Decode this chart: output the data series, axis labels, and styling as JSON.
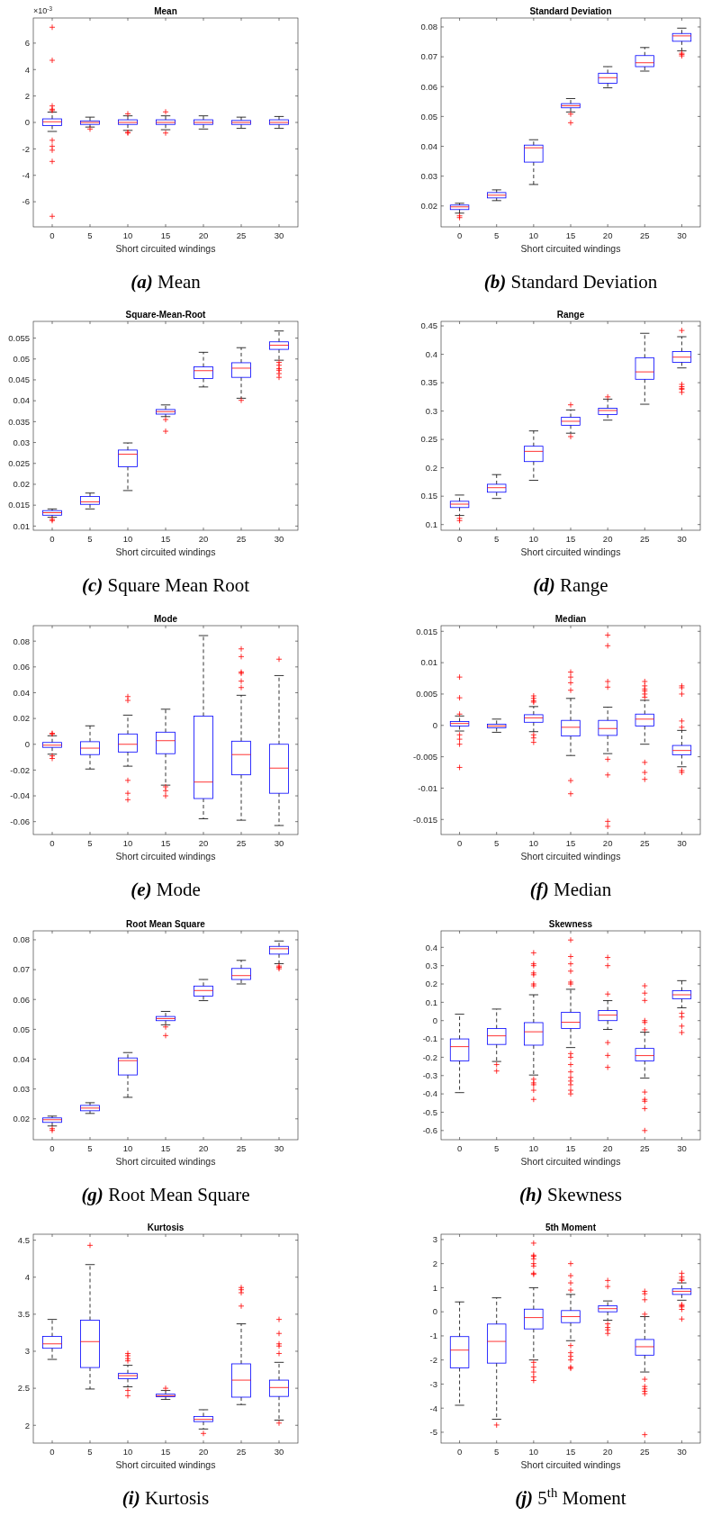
{
  "chart_data": [
    {
      "type": "box",
      "title": "Mean",
      "xlabel": "Short circuited windings",
      "categories": [
        "0",
        "5",
        "10",
        "15",
        "20",
        "25",
        "30"
      ],
      "color": "#0000ff",
      "ylim": [
        -7.9,
        7.9
      ],
      "yticks": [
        -6,
        -4,
        -2,
        0,
        2,
        4,
        6
      ],
      "annotations": [
        "(a) Mean",
        "×10$^{-3}$"
      ],
      "boxes": [
        {
          "low": -0.68,
          "q1": -0.24,
          "median": 0.05,
          "q3": 0.27,
          "high": 0.78,
          "outliers": [
            7.2,
            4.7,
            1.25,
            1.0,
            0.9,
            -1.35,
            -1.8,
            -2.1,
            -2.95,
            -7.1
          ]
        },
        {
          "low": -0.35,
          "q1": -0.15,
          "median": 0,
          "q3": 0.12,
          "high": 0.4,
          "outliers": [
            -0.5
          ]
        },
        {
          "low": -0.6,
          "q1": -0.15,
          "median": 0,
          "q3": 0.2,
          "high": 0.5,
          "outliers": [
            0.65,
            -0.75,
            -0.8
          ]
        },
        {
          "low": -0.55,
          "q1": -0.15,
          "median": 0,
          "q3": 0.2,
          "high": 0.5,
          "outliers": [
            0.8,
            -0.8
          ]
        },
        {
          "low": -0.5,
          "q1": -0.15,
          "median": 0,
          "q3": 0.2,
          "high": 0.5
        },
        {
          "low": -0.45,
          "q1": -0.15,
          "median": 0,
          "q3": 0.15,
          "high": 0.4
        },
        {
          "low": -0.45,
          "q1": -0.15,
          "median": 0,
          "q3": 0.2,
          "high": 0.45
        }
      ]
    },
    {
      "type": "box",
      "title": "Standard Deviation",
      "xlabel": "Short circuited windings",
      "categories": [
        "0",
        "5",
        "10",
        "15",
        "20",
        "25",
        "30"
      ],
      "color": "#0000ff",
      "ylim": [
        0.013,
        0.083
      ],
      "yticks": [
        0.02,
        0.03,
        0.04,
        0.05,
        0.06,
        0.07,
        0.08
      ],
      "annotations": [
        "(b) Standard Deviation"
      ],
      "boxes": [
        {
          "low": 0.0176,
          "q1": 0.0188,
          "median": 0.0197,
          "q3": 0.0203,
          "high": 0.0209,
          "outliers": [
            0.0167,
            0.0161
          ]
        },
        {
          "low": 0.0218,
          "q1": 0.0227,
          "median": 0.0236,
          "q3": 0.0245,
          "high": 0.0254
        },
        {
          "low": 0.0272,
          "q1": 0.0347,
          "median": 0.0395,
          "q3": 0.0404,
          "high": 0.0422
        },
        {
          "low": 0.0515,
          "q1": 0.0529,
          "median": 0.0536,
          "q3": 0.0543,
          "high": 0.056,
          "outliers": [
            0.0508,
            0.0479
          ]
        },
        {
          "low": 0.0596,
          "q1": 0.0611,
          "median": 0.063,
          "q3": 0.0645,
          "high": 0.0667
        },
        {
          "low": 0.0652,
          "q1": 0.0667,
          "median": 0.068,
          "q3": 0.0704,
          "high": 0.0731
        },
        {
          "low": 0.072,
          "q1": 0.0752,
          "median": 0.077,
          "q3": 0.0778,
          "high": 0.0796,
          "outliers": [
            0.0712,
            0.0708,
            0.0703
          ]
        }
      ]
    },
    {
      "type": "box",
      "title": "Square-Mean-Root",
      "xlabel": "Short circuited windings",
      "categories": [
        "0",
        "5",
        "10",
        "15",
        "20",
        "25",
        "30"
      ],
      "color": "#0000ff",
      "ylim": [
        0.009,
        0.059
      ],
      "yticks": [
        0.01,
        0.015,
        0.02,
        0.025,
        0.03,
        0.035,
        0.04,
        0.045,
        0.05,
        0.055
      ],
      "annotations": [
        "(c) Square Mean Root"
      ],
      "boxes": [
        {
          "low": 0.0121,
          "q1": 0.0126,
          "median": 0.0132,
          "q3": 0.0137,
          "high": 0.0141,
          "outliers": [
            0.0116,
            0.0113
          ]
        },
        {
          "low": 0.0141,
          "q1": 0.0152,
          "median": 0.0158,
          "q3": 0.0171,
          "high": 0.0179
        },
        {
          "low": 0.0185,
          "q1": 0.0242,
          "median": 0.0272,
          "q3": 0.0282,
          "high": 0.0299
        },
        {
          "low": 0.0362,
          "q1": 0.0368,
          "median": 0.0374,
          "q3": 0.0379,
          "high": 0.039,
          "outliers": [
            0.0355,
            0.0327
          ]
        },
        {
          "low": 0.0433,
          "q1": 0.0453,
          "median": 0.0472,
          "q3": 0.0481,
          "high": 0.0516
        },
        {
          "low": 0.0406,
          "q1": 0.0456,
          "median": 0.0478,
          "q3": 0.0491,
          "high": 0.0527,
          "outliers": [
            0.0401
          ]
        },
        {
          "low": 0.0497,
          "q1": 0.0523,
          "median": 0.0533,
          "q3": 0.0541,
          "high": 0.0567,
          "outliers": [
            0.0492,
            0.0485,
            0.0477,
            0.0473,
            0.0465,
            0.0456
          ]
        }
      ]
    },
    {
      "type": "box",
      "title": "Range",
      "xlabel": "Short circuited windings",
      "categories": [
        "0",
        "5",
        "10",
        "15",
        "20",
        "25",
        "30"
      ],
      "color": "#0000ff",
      "ylim": [
        0.09,
        0.458
      ],
      "yticks": [
        0.1,
        0.15,
        0.2,
        0.25,
        0.3,
        0.35,
        0.4,
        0.45
      ],
      "annotations": [
        "(d) Range"
      ],
      "boxes": [
        {
          "low": 0.116,
          "q1": 0.13,
          "median": 0.136,
          "q3": 0.141,
          "high": 0.152,
          "outliers": [
            0.111,
            0.107
          ]
        },
        {
          "low": 0.146,
          "q1": 0.157,
          "median": 0.165,
          "q3": 0.171,
          "high": 0.188
        },
        {
          "low": 0.178,
          "q1": 0.211,
          "median": 0.229,
          "q3": 0.238,
          "high": 0.265
        },
        {
          "low": 0.261,
          "q1": 0.275,
          "median": 0.282,
          "q3": 0.289,
          "high": 0.302,
          "outliers": [
            0.311,
            0.255
          ]
        },
        {
          "low": 0.284,
          "q1": 0.294,
          "median": 0.301,
          "q3": 0.305,
          "high": 0.321,
          "outliers": [
            0.325
          ]
        },
        {
          "low": 0.312,
          "q1": 0.356,
          "median": 0.369,
          "q3": 0.394,
          "high": 0.437
        },
        {
          "low": 0.376,
          "q1": 0.386,
          "median": 0.395,
          "q3": 0.405,
          "high": 0.431,
          "outliers": [
            0.442,
            0.347,
            0.343,
            0.34,
            0.338,
            0.333
          ]
        }
      ]
    },
    {
      "type": "box",
      "title": "Mode",
      "xlabel": "Short circuited windings",
      "categories": [
        "0",
        "5",
        "10",
        "15",
        "20",
        "25",
        "30"
      ],
      "color": "#0000ff",
      "ylim": [
        -0.07,
        0.092
      ],
      "yticks": [
        -0.06,
        -0.04,
        -0.02,
        0,
        0.02,
        0.04,
        0.06,
        0.08
      ],
      "annotations": [
        "(e) Mode"
      ],
      "boxes": [
        {
          "low": -0.0077,
          "q1": -0.0024,
          "median": -0.0007,
          "q3": 0.0014,
          "high": 0.0066,
          "outliers": [
            0.008,
            0.0085,
            -0.009,
            -0.011
          ]
        },
        {
          "low": -0.0192,
          "q1": -0.008,
          "median": -0.003,
          "q3": 0.002,
          "high": 0.0143
        },
        {
          "low": -0.017,
          "q1": -0.006,
          "median": 0,
          "q3": 0.008,
          "high": 0.0226,
          "outliers": [
            0.037,
            0.034,
            -0.028,
            -0.038,
            -0.043
          ]
        },
        {
          "low": -0.0317,
          "q1": -0.0073,
          "median": 0.0028,
          "q3": 0.0094,
          "high": 0.0272,
          "outliers": [
            -0.033,
            -0.036,
            -0.04
          ]
        },
        {
          "low": -0.0578,
          "q1": -0.0421,
          "median": -0.0293,
          "q3": 0.0219,
          "high": 0.0843
        },
        {
          "low": -0.0589,
          "q1": -0.0237,
          "median": -0.008,
          "q3": 0.0024,
          "high": 0.038,
          "outliers": [
            0.074,
            0.068,
            0.056,
            0.055,
            0.049,
            0.044
          ]
        },
        {
          "low": -0.063,
          "q1": -0.038,
          "median": -0.0185,
          "q3": 0,
          "high": 0.0533,
          "outliers": [
            0.066
          ]
        }
      ]
    },
    {
      "type": "box",
      "title": "Median",
      "xlabel": "Short circuited windings",
      "categories": [
        "0",
        "5",
        "10",
        "15",
        "20",
        "25",
        "30"
      ],
      "color": "#0000ff",
      "ylim": [
        -0.0174,
        0.0159
      ],
      "yticks": [
        -0.015,
        -0.01,
        -0.005,
        0,
        0.005,
        0.01,
        0.015
      ],
      "annotations": [
        "(f) Median"
      ],
      "boxes": [
        {
          "low": -0.0009,
          "q1": -0.0001,
          "median": 0.0003,
          "q3": 0.0006,
          "high": 0.0015,
          "outliers": [
            0.0077,
            0.0044,
            0.0018,
            -0.0015,
            -0.0022,
            -0.003,
            -0.0067
          ]
        },
        {
          "low": -0.0011,
          "q1": -0.0004,
          "median": -0.0001,
          "q3": 0.0002,
          "high": 0.001
        },
        {
          "low": -0.001,
          "q1": 0.0005,
          "median": 0.0012,
          "q3": 0.0017,
          "high": 0.003,
          "outliers": [
            0.0047,
            0.0043,
            0.0039,
            0.0037,
            -0.0015,
            -0.002,
            -0.0027
          ]
        },
        {
          "low": -0.0048,
          "q1": -0.0017,
          "median": -0.0003,
          "q3": 0.0008,
          "high": 0.0043,
          "outliers": [
            0.0085,
            0.0077,
            0.0068,
            0.0056,
            -0.0088,
            -0.0109
          ]
        },
        {
          "low": -0.0045,
          "q1": -0.0016,
          "median": -0.0005,
          "q3": 0.0008,
          "high": 0.0029,
          "outliers": [
            0.0144,
            0.0127,
            0.007,
            0.0061,
            -0.0054,
            -0.0079,
            -0.0153,
            -0.0161
          ]
        },
        {
          "low": -0.003,
          "q1": -0.0001,
          "median": 0.001,
          "q3": 0.0018,
          "high": 0.004,
          "outliers": [
            0.007,
            0.0063,
            0.0058,
            0.0055,
            0.005,
            0.0045,
            -0.0059,
            -0.0075,
            -0.0086
          ]
        },
        {
          "low": -0.0066,
          "q1": -0.0047,
          "median": -0.004,
          "q3": -0.0032,
          "high": -0.0008,
          "outliers": [
            0.0063,
            0.006,
            0.005,
            0.0007,
            -0.0003,
            -0.0072,
            -0.0075
          ]
        }
      ]
    },
    {
      "type": "box",
      "title": "Root Mean Square",
      "xlabel": "Short circuited windings",
      "categories": [
        "0",
        "5",
        "10",
        "15",
        "20",
        "25",
        "30"
      ],
      "color": "#0000ff",
      "ylim": [
        0.013,
        0.083
      ],
      "yticks": [
        0.02,
        0.03,
        0.04,
        0.05,
        0.06,
        0.07,
        0.08
      ],
      "annotations": [
        "(g) Root Mean Square"
      ],
      "boxes": [
        {
          "low": 0.0176,
          "q1": 0.0188,
          "median": 0.0197,
          "q3": 0.0203,
          "high": 0.0209,
          "outliers": [
            0.0167,
            0.0161
          ]
        },
        {
          "low": 0.0218,
          "q1": 0.0227,
          "median": 0.0236,
          "q3": 0.0245,
          "high": 0.0254
        },
        {
          "low": 0.0272,
          "q1": 0.0347,
          "median": 0.0395,
          "q3": 0.0404,
          "high": 0.0422
        },
        {
          "low": 0.0515,
          "q1": 0.0529,
          "median": 0.0536,
          "q3": 0.0543,
          "high": 0.056,
          "outliers": [
            0.0508,
            0.0479
          ]
        },
        {
          "low": 0.0596,
          "q1": 0.0611,
          "median": 0.063,
          "q3": 0.0645,
          "high": 0.0667
        },
        {
          "low": 0.0652,
          "q1": 0.0667,
          "median": 0.068,
          "q3": 0.0704,
          "high": 0.0731
        },
        {
          "low": 0.072,
          "q1": 0.0752,
          "median": 0.077,
          "q3": 0.0778,
          "high": 0.0796,
          "outliers": [
            0.0712,
            0.0708,
            0.0703
          ]
        }
      ]
    },
    {
      "type": "box",
      "title": "Skewness",
      "xlabel": "Short circuited windings",
      "categories": [
        "0",
        "5",
        "10",
        "15",
        "20",
        "25",
        "30"
      ],
      "color": "#0000ff",
      "ylim": [
        -0.65,
        0.49
      ],
      "yticks": [
        -0.6,
        -0.5,
        -0.4,
        -0.3,
        -0.2,
        -0.1,
        0,
        0.1,
        0.2,
        0.3,
        0.4
      ],
      "annotations": [
        "(h) Skewness"
      ],
      "boxes": [
        {
          "low": -0.393,
          "q1": -0.22,
          "median": -0.142,
          "q3": -0.1,
          "high": 0.035
        },
        {
          "low": -0.223,
          "q1": -0.13,
          "median": -0.083,
          "q3": -0.043,
          "high": 0.063,
          "outliers": [
            -0.24,
            -0.275
          ]
        },
        {
          "low": -0.297,
          "q1": -0.134,
          "median": -0.061,
          "q3": -0.011,
          "high": 0.141,
          "outliers": [
            0.37,
            0.31,
            0.3,
            0.26,
            0.25,
            0.2,
            0.19,
            -0.32,
            -0.34,
            -0.35,
            -0.38,
            -0.43
          ]
        },
        {
          "low": -0.147,
          "q1": -0.043,
          "median": -0.009,
          "q3": 0.045,
          "high": 0.171,
          "outliers": [
            0.44,
            0.35,
            0.31,
            0.27,
            0.21,
            0.2,
            -0.18,
            -0.2,
            -0.24,
            -0.28,
            -0.31,
            -0.33,
            -0.35,
            -0.38,
            -0.4
          ]
        },
        {
          "low": -0.048,
          "q1": 0,
          "median": 0.03,
          "q3": 0.055,
          "high": 0.109,
          "outliers": [
            0.345,
            0.3,
            0.145,
            -0.12,
            -0.19,
            -0.255
          ]
        },
        {
          "low": -0.314,
          "q1": -0.22,
          "median": -0.191,
          "q3": -0.152,
          "high": -0.063,
          "outliers": [
            0.19,
            0.15,
            0.11,
            0,
            -0.01,
            -0.05,
            -0.39,
            -0.43,
            -0.44,
            -0.48,
            -0.6
          ]
        },
        {
          "low": 0.07,
          "q1": 0.119,
          "median": 0.141,
          "q3": 0.163,
          "high": 0.218,
          "outliers": [
            0.04,
            0.02,
            -0.03,
            -0.065
          ]
        }
      ]
    },
    {
      "type": "box",
      "title": "Kurtosis",
      "xlabel": "Short circuited windings",
      "categories": [
        "0",
        "5",
        "10",
        "15",
        "20",
        "25",
        "30"
      ],
      "color": "#0000ff",
      "ylim": [
        1.76,
        4.58
      ],
      "yticks": [
        2,
        2.5,
        3,
        3.5,
        4,
        4.5
      ],
      "annotations": [
        "(i) Kurtosis"
      ],
      "boxes": [
        {
          "low": 2.89,
          "q1": 3.04,
          "median": 3.1,
          "q3": 3.2,
          "high": 3.43
        },
        {
          "low": 2.49,
          "q1": 2.78,
          "median": 3.13,
          "q3": 3.42,
          "high": 4.17,
          "outliers": [
            4.43
          ]
        },
        {
          "low": 2.52,
          "q1": 2.63,
          "median": 2.67,
          "q3": 2.7,
          "high": 2.81,
          "outliers": [
            2.97,
            2.94,
            2.9,
            2.87,
            2.47,
            2.4
          ]
        },
        {
          "low": 2.35,
          "q1": 2.385,
          "median": 2.4,
          "q3": 2.42,
          "high": 2.47,
          "outliers": [
            2.5
          ]
        },
        {
          "low": 1.95,
          "q1": 2.05,
          "median": 2.08,
          "q3": 2.12,
          "high": 2.21,
          "outliers": [
            1.89
          ]
        },
        {
          "low": 2.28,
          "q1": 2.38,
          "median": 2.61,
          "q3": 2.83,
          "high": 3.37,
          "outliers": [
            3.86,
            3.83,
            3.79,
            3.61
          ]
        },
        {
          "low": 2.07,
          "q1": 2.39,
          "median": 2.51,
          "q3": 2.61,
          "high": 2.85,
          "outliers": [
            3.43,
            3.24,
            3.1,
            3.07,
            2.97,
            2.03
          ]
        }
      ]
    },
    {
      "type": "box",
      "title": "5th Moment",
      "xlabel": "Short circuited windings",
      "categories": [
        "0",
        "5",
        "10",
        "15",
        "20",
        "25",
        "30"
      ],
      "color": "#0000ff",
      "ylim": [
        -5.45,
        3.22
      ],
      "yticks": [
        -5,
        -4,
        -3,
        -2,
        -1,
        0,
        1,
        2,
        3
      ],
      "annotations": [
        "(j) 5$^{th}$ Moment"
      ],
      "boxes": [
        {
          "low": -3.88,
          "q1": -2.33,
          "median": -1.59,
          "q3": -1.03,
          "high": 0.41
        },
        {
          "low": -4.46,
          "q1": -2.13,
          "median": -1.23,
          "q3": -0.51,
          "high": 0.58,
          "outliers": [
            -4.7
          ]
        },
        {
          "low": -2.0,
          "q1": -0.71,
          "median": -0.24,
          "q3": 0.11,
          "high": 1.0,
          "outliers": [
            2.85,
            2.35,
            2.3,
            2.2,
            2.0,
            1.9,
            1.6,
            1.55,
            -2.1,
            -2.3,
            -2.5,
            -2.7,
            -2.85
          ]
        },
        {
          "low": -1.2,
          "q1": -0.45,
          "median": -0.2,
          "q3": 0.05,
          "high": 0.72,
          "outliers": [
            2.0,
            1.5,
            1.2,
            0.9,
            -1.4,
            -1.7,
            -1.85,
            -2.0,
            -2.3,
            -2.35
          ]
        },
        {
          "low": -0.35,
          "q1": 0,
          "median": 0.13,
          "q3": 0.25,
          "high": 0.45,
          "outliers": [
            1.3,
            1.05,
            -0.5,
            -0.65,
            -0.75,
            -0.9
          ]
        },
        {
          "low": -2.5,
          "q1": -1.8,
          "median": -1.45,
          "q3": -1.15,
          "high": -0.2,
          "outliers": [
            0.85,
            0.75,
            0.5,
            -0.1,
            -2.8,
            -3.1,
            -3.2,
            -3.3,
            -3.4,
            -5.1
          ]
        },
        {
          "low": 0.48,
          "q1": 0.72,
          "median": 0.85,
          "q3": 0.95,
          "high": 1.2,
          "outliers": [
            1.6,
            1.45,
            1.35,
            1.3,
            0.3,
            0.25,
            0.2,
            0.1,
            -0.3
          ]
        }
      ]
    }
  ]
}
